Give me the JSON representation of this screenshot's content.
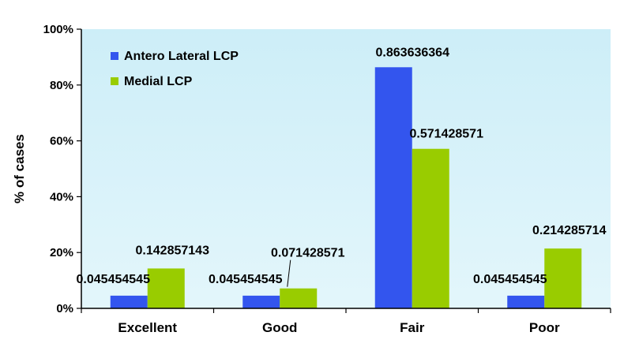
{
  "chart_data": {
    "type": "bar",
    "categories": [
      "Excellent",
      "Good",
      "Fair",
      "Poor"
    ],
    "series": [
      {
        "name": "Antero Lateral LCP",
        "color": "#3355ee",
        "values": [
          0.045454545,
          0.045454545,
          0.863636364,
          0.045454545
        ],
        "labels": [
          "0.045454545",
          "0.045454545",
          "0.863636364",
          "0.045454545"
        ]
      },
      {
        "name": "Medial LCP",
        "color": "#99cc00",
        "values": [
          0.142857143,
          0.071428571,
          0.571428571,
          0.214285714
        ],
        "labels": [
          "0.142857143",
          "0.071428571",
          "0.571428571",
          "0.214285714"
        ]
      }
    ],
    "ylabel": "% of cases",
    "ylim": [
      0,
      1
    ],
    "yticks": [
      "0%",
      "20%",
      "40%",
      "60%",
      "80%",
      "100%"
    ],
    "legend_position": "top-left",
    "plot_background": "#d6f2fa",
    "grid": false
  }
}
